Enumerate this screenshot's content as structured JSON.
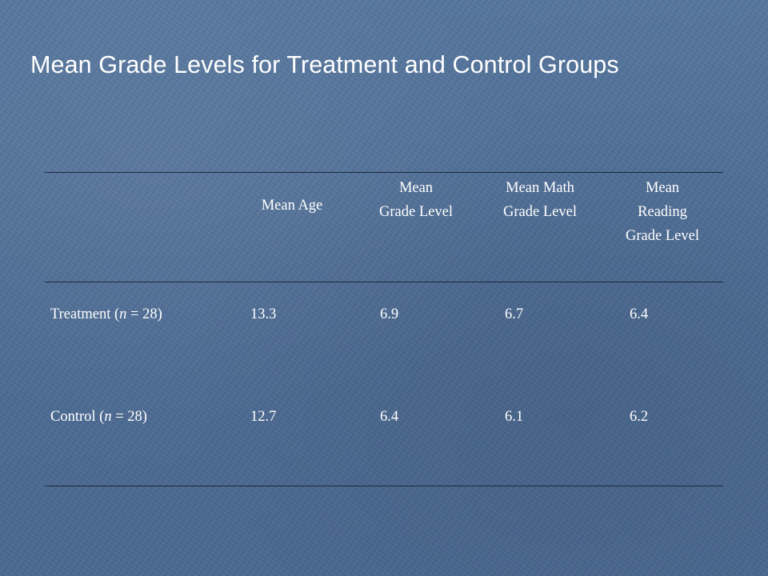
{
  "title": "Mean Grade Levels for Treatment and Control Groups",
  "table": {
    "headers": [
      "Mean Age",
      "Mean\nGrade Level",
      "Mean Math\nGrade Level",
      "Mean\nReading\nGrade Level"
    ],
    "rows": [
      {
        "label_prefix": "Treatment (",
        "label_italic": "n",
        "label_suffix": " = 28)",
        "values": [
          "13.3",
          "6.9",
          "6.7",
          "6.4"
        ]
      },
      {
        "label_prefix": "Control (",
        "label_italic": "n",
        "label_suffix": " = 28)",
        "values": [
          "12.7",
          "6.4",
          "6.1",
          "6.2"
        ]
      }
    ]
  }
}
